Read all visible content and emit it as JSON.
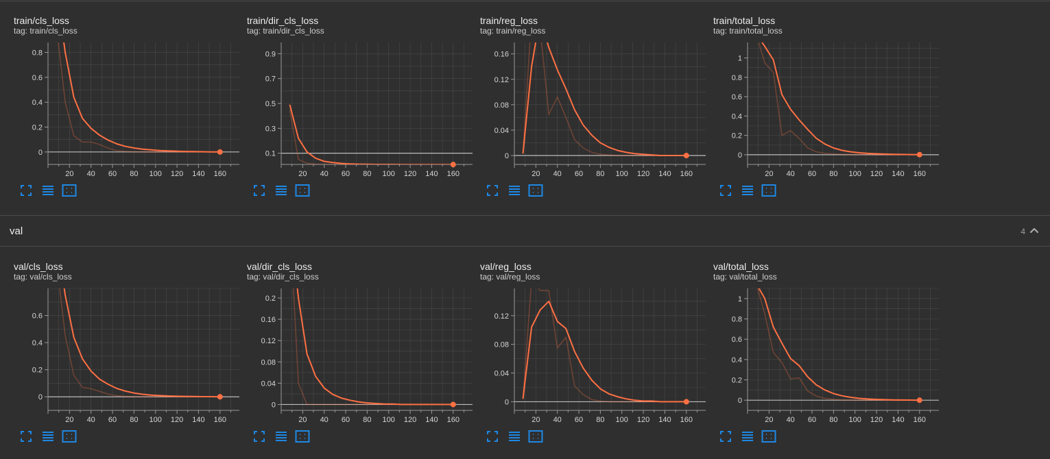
{
  "colors": {
    "line": "#ff7043",
    "raw": "#ff7043",
    "grid": "#5a5a5a",
    "axis": "#9a9a9a",
    "text": "#d6d6d6",
    "button": "#1e88e5"
  },
  "icons": [
    "fullscreen-icon",
    "data-table-icon",
    "fit-domain-icon"
  ],
  "sections": [
    {
      "title": "",
      "count": "",
      "charts": [
        {
          "title": "train/cls_loss",
          "tag": "tag: train/cls_loss",
          "chart_data": {
            "type": "line",
            "x": [
              8,
              16,
              24,
              32,
              40,
              48,
              56,
              64,
              72,
              80,
              88,
              96,
              104,
              112,
              120,
              128,
              136,
              144,
              152,
              160
            ],
            "series": [
              {
                "values": [
                  1.3,
                  0.8,
                  0.44,
                  0.27,
                  0.19,
                  0.135,
                  0.095,
                  0.065,
                  0.045,
                  0.032,
                  0.023,
                  0.017,
                  0.012,
                  0.009,
                  0.006,
                  0.004,
                  0.003,
                  0.002,
                  0.001,
                  0.0
                ]
              },
              {
                "values": [
                  1.0,
                  0.4,
                  0.13,
                  0.08,
                  0.08,
                  0.06,
                  0.03,
                  0.01,
                  0.004,
                  0.002,
                  0.001,
                  0.0,
                  0.0,
                  0.0,
                  0.0,
                  0.0,
                  0.0,
                  0.0,
                  0.0,
                  0.0
                ]
              }
            ],
            "xlim": [
              0,
              178
            ],
            "ylim": [
              -0.1,
              0.88
            ],
            "xticks": [
              "20",
              "40",
              "60",
              "80",
              "100",
              "120",
              "140",
              "160"
            ],
            "yticks": [
              "0",
              "0.2",
              "0.4",
              "0.6",
              "0.8"
            ]
          }
        },
        {
          "title": "train/dir_cls_loss",
          "tag": "tag: train/dir_cls_loss",
          "chart_data": {
            "type": "line",
            "x": [
              8,
              16,
              24,
              32,
              40,
              48,
              56,
              64,
              72,
              80,
              88,
              96,
              104,
              112,
              120,
              128,
              136,
              144,
              152,
              160
            ],
            "series": [
              {
                "values": [
                  0.49,
                  0.22,
                  0.11,
                  0.06,
                  0.035,
                  0.025,
                  0.018,
                  0.014,
                  0.012,
                  0.011,
                  0.01,
                  0.01,
                  0.01,
                  0.009,
                  0.009,
                  0.009,
                  0.009,
                  0.009,
                  0.009,
                  0.009
                ]
              },
              {
                "values": [
                  0.45,
                  0.05,
                  0.02,
                  0.012,
                  0.01,
                  0.01,
                  0.009,
                  0.009,
                  0.009,
                  0.009,
                  0.009,
                  0.009,
                  0.009,
                  0.009,
                  0.009,
                  0.009,
                  0.009,
                  0.009,
                  0.009,
                  0.009
                ]
              }
            ],
            "xlim": [
              0,
              178
            ],
            "ylim": [
              0.01,
              0.99
            ],
            "xticks": [
              "20",
              "40",
              "60",
              "80",
              "100",
              "120",
              "140",
              "160"
            ],
            "yticks": [
              "0.1",
              "0.3",
              "0.5",
              "0.7",
              "0.9"
            ]
          }
        },
        {
          "title": "train/reg_loss",
          "tag": "tag: train/reg_loss",
          "chart_data": {
            "type": "line",
            "x": [
              8,
              16,
              24,
              32,
              40,
              48,
              56,
              64,
              72,
              80,
              88,
              96,
              104,
              112,
              120,
              128,
              136,
              144,
              152,
              160
            ],
            "series": [
              {
                "values": [
                  0.003,
                  0.14,
                  0.22,
                  0.17,
                  0.135,
                  0.105,
                  0.072,
                  0.048,
                  0.032,
                  0.02,
                  0.013,
                  0.008,
                  0.005,
                  0.003,
                  0.002,
                  0.001,
                  0.0,
                  0.0,
                  0.0,
                  0.0
                ]
              },
              {
                "values": [
                  0.003,
                  0.22,
                  0.2,
                  0.065,
                  0.092,
                  0.06,
                  0.025,
                  0.012,
                  0.005,
                  0.002,
                  0.001,
                  0.0,
                  0.0,
                  0.0,
                  0.0,
                  0.0,
                  0.0,
                  0.0,
                  0.0,
                  0.0
                ]
              }
            ],
            "xlim": [
              0,
              178
            ],
            "ylim": [
              -0.014,
              0.178
            ],
            "xticks": [
              "20",
              "40",
              "60",
              "80",
              "100",
              "120",
              "140",
              "160"
            ],
            "yticks": [
              "0",
              "0.04",
              "0.08",
              "0.12",
              "0.16"
            ]
          }
        },
        {
          "title": "train/total_loss",
          "tag": "tag: train/total_loss",
          "chart_data": {
            "type": "line",
            "x": [
              8,
              16,
              24,
              32,
              40,
              48,
              56,
              64,
              72,
              80,
              88,
              96,
              104,
              112,
              120,
              128,
              136,
              144,
              152,
              160
            ],
            "series": [
              {
                "values": [
                  1.25,
                  1.12,
                  0.98,
                  0.62,
                  0.47,
                  0.36,
                  0.26,
                  0.17,
                  0.11,
                  0.07,
                  0.045,
                  0.03,
                  0.02,
                  0.014,
                  0.01,
                  0.007,
                  0.005,
                  0.003,
                  0.002,
                  0.001
                ]
              },
              {
                "values": [
                  1.25,
                  0.95,
                  0.85,
                  0.2,
                  0.25,
                  0.17,
                  0.07,
                  0.03,
                  0.015,
                  0.008,
                  0.004,
                  0.002,
                  0.001,
                  0.0,
                  0.0,
                  0.0,
                  0.0,
                  0.0,
                  0.0,
                  0.0
                ]
              }
            ],
            "xlim": [
              0,
              178
            ],
            "ylim": [
              -0.1,
              1.16
            ],
            "xticks": [
              "20",
              "40",
              "60",
              "80",
              "100",
              "120",
              "140",
              "160"
            ],
            "yticks": [
              "0",
              "0.2",
              "0.4",
              "0.6",
              "0.8",
              "1"
            ]
          }
        }
      ]
    },
    {
      "title": "val",
      "count": "4",
      "charts": [
        {
          "title": "val/cls_loss",
          "tag": "tag: val/cls_loss",
          "chart_data": {
            "type": "line",
            "x": [
              8,
              16,
              24,
              32,
              40,
              48,
              56,
              64,
              72,
              80,
              88,
              96,
              104,
              112,
              120,
              128,
              136,
              144,
              152,
              160
            ],
            "series": [
              {
                "values": [
                  1.2,
                  0.75,
                  0.44,
                  0.28,
                  0.19,
                  0.13,
                  0.092,
                  0.062,
                  0.042,
                  0.028,
                  0.019,
                  0.013,
                  0.009,
                  0.006,
                  0.004,
                  0.003,
                  0.002,
                  0.001,
                  0.001,
                  0.0
                ]
              },
              {
                "values": [
                  1.0,
                  0.45,
                  0.16,
                  0.07,
                  0.06,
                  0.04,
                  0.02,
                  0.008,
                  0.003,
                  0.001,
                  0.0,
                  0.0,
                  0.0,
                  0.0,
                  0.0,
                  0.0,
                  0.0,
                  0.0,
                  0.0,
                  0.0
                ]
              }
            ],
            "xlim": [
              0,
              178
            ],
            "ylim": [
              -0.1,
              0.8
            ],
            "xticks": [
              "20",
              "40",
              "60",
              "80",
              "100",
              "120",
              "140",
              "160"
            ],
            "yticks": [
              "0",
              "0.2",
              "0.4",
              "0.6"
            ]
          }
        },
        {
          "title": "val/dir_cls_loss",
          "tag": "tag: val/dir_cls_loss",
          "chart_data": {
            "type": "line",
            "x": [
              8,
              16,
              24,
              32,
              40,
              48,
              56,
              64,
              72,
              80,
              88,
              96,
              104,
              112,
              120,
              128,
              136,
              144,
              152,
              160
            ],
            "series": [
              {
                "values": [
                  0.35,
                  0.2,
                  0.095,
                  0.053,
                  0.031,
                  0.019,
                  0.012,
                  0.008,
                  0.005,
                  0.003,
                  0.002,
                  0.001,
                  0.001,
                  0.0,
                  0.0,
                  0.0,
                  0.0,
                  0.0,
                  0.0,
                  0.0
                ]
              },
              {
                "values": [
                  0.35,
                  0.04,
                  0.0,
                  0.0,
                  0.0,
                  0.0,
                  0.0,
                  0.0,
                  0.0,
                  0.0,
                  0.0,
                  0.0,
                  0.0,
                  0.0,
                  0.0,
                  0.0,
                  0.0,
                  0.0,
                  0.0,
                  0.0
                ]
              }
            ],
            "xlim": [
              0,
              178
            ],
            "ylim": [
              -0.011,
              0.218
            ],
            "xticks": [
              "20",
              "40",
              "60",
              "80",
              "100",
              "120",
              "140",
              "160"
            ],
            "yticks": [
              "0",
              "0.04",
              "0.08",
              "0.12",
              "0.16",
              "0.2"
            ]
          }
        },
        {
          "title": "val/reg_loss",
          "tag": "tag: val/reg_loss",
          "chart_data": {
            "type": "line",
            "x": [
              8,
              16,
              24,
              32,
              40,
              48,
              56,
              64,
              72,
              80,
              88,
              96,
              104,
              112,
              120,
              128,
              136,
              144,
              152,
              160
            ],
            "series": [
              {
                "values": [
                  0.004,
                  0.104,
                  0.128,
                  0.14,
                  0.112,
                  0.102,
                  0.07,
                  0.047,
                  0.03,
                  0.018,
                  0.011,
                  0.007,
                  0.004,
                  0.002,
                  0.001,
                  0.001,
                  0.0,
                  0.0,
                  0.0,
                  0.0
                ]
              },
              {
                "values": [
                  0.004,
                  0.17,
                  0.155,
                  0.155,
                  0.075,
                  0.09,
                  0.022,
                  0.01,
                  0.003,
                  0.001,
                  0.0,
                  0.0,
                  0.0,
                  0.0,
                  0.0,
                  0.0,
                  0.0,
                  0.0,
                  0.0,
                  0.0
                ]
              }
            ],
            "xlim": [
              0,
              178
            ],
            "ylim": [
              -0.012,
              0.158
            ],
            "xticks": [
              "20",
              "40",
              "60",
              "80",
              "100",
              "120",
              "140",
              "160"
            ],
            "yticks": [
              "0",
              "0.04",
              "0.08",
              "0.12"
            ]
          }
        },
        {
          "title": "val/total_loss",
          "tag": "tag: val/total_loss",
          "chart_data": {
            "type": "line",
            "x": [
              8,
              16,
              24,
              32,
              40,
              48,
              56,
              64,
              72,
              80,
              88,
              96,
              104,
              112,
              120,
              128,
              136,
              144,
              152,
              160
            ],
            "series": [
              {
                "values": [
                  1.15,
                  1.0,
                  0.72,
                  0.56,
                  0.41,
                  0.34,
                  0.23,
                  0.15,
                  0.1,
                  0.065,
                  0.043,
                  0.028,
                  0.018,
                  0.012,
                  0.008,
                  0.005,
                  0.003,
                  0.002,
                  0.001,
                  0.0
                ]
              },
              {
                "values": [
                  1.15,
                  0.85,
                  0.47,
                  0.37,
                  0.21,
                  0.22,
                  0.09,
                  0.04,
                  0.018,
                  0.008,
                  0.003,
                  0.001,
                  0.0,
                  0.0,
                  0.0,
                  0.0,
                  0.0,
                  0.0,
                  0.0,
                  0.0
                ]
              }
            ],
            "xlim": [
              0,
              178
            ],
            "ylim": [
              -0.1,
              1.1
            ],
            "xticks": [
              "20",
              "40",
              "60",
              "80",
              "100",
              "120",
              "140",
              "160"
            ],
            "yticks": [
              "0",
              "0.2",
              "0.4",
              "0.6",
              "0.8",
              "1"
            ]
          }
        }
      ]
    }
  ]
}
